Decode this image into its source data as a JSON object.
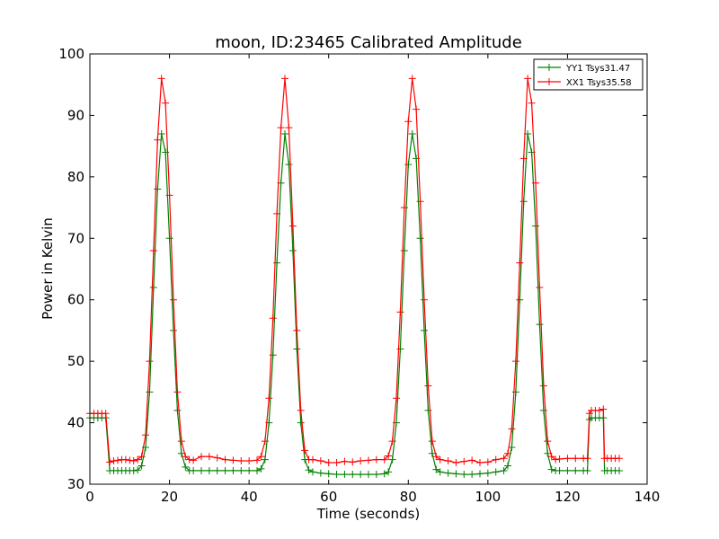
{
  "chart_data": {
    "type": "line",
    "title": "moon, ID:23465 Calibrated Amplitude",
    "xlabel": "Time (seconds)",
    "ylabel": "Power in Kelvin",
    "xlim": [
      0,
      140
    ],
    "ylim": [
      30,
      100
    ],
    "xticks": [
      "0",
      "20",
      "40",
      "60",
      "80",
      "100",
      "120",
      "140"
    ],
    "yticks": [
      "30",
      "40",
      "50",
      "60",
      "70",
      "80",
      "90",
      "100"
    ],
    "grid": false,
    "legend_position": "top-right",
    "marker": "plus",
    "series": [
      {
        "name": "YY1 Tsys31.47",
        "color": "#008000",
        "points": [
          [
            0,
            40.8
          ],
          [
            1,
            40.8
          ],
          [
            2,
            40.8
          ],
          [
            3,
            40.8
          ],
          [
            4,
            40.8
          ],
          [
            5,
            32.2
          ],
          [
            6,
            32.2
          ],
          [
            7,
            32.2
          ],
          [
            8,
            32.2
          ],
          [
            9,
            32.2
          ],
          [
            10,
            32.2
          ],
          [
            11,
            32.2
          ],
          [
            12,
            32.3
          ],
          [
            13,
            33.0
          ],
          [
            14,
            36.0
          ],
          [
            15,
            45.0
          ],
          [
            16,
            62.0
          ],
          [
            17,
            78.0
          ],
          [
            18,
            87.0
          ],
          [
            19,
            84.0
          ],
          [
            20,
            70.0
          ],
          [
            21,
            55.0
          ],
          [
            22,
            42.0
          ],
          [
            23,
            35.0
          ],
          [
            24,
            32.8
          ],
          [
            25,
            32.2
          ],
          [
            26,
            32.2
          ],
          [
            28,
            32.2
          ],
          [
            30,
            32.2
          ],
          [
            32,
            32.2
          ],
          [
            34,
            32.2
          ],
          [
            36,
            32.2
          ],
          [
            38,
            32.2
          ],
          [
            40,
            32.2
          ],
          [
            42,
            32.2
          ],
          [
            43,
            32.5
          ],
          [
            44,
            34.0
          ],
          [
            45,
            40.0
          ],
          [
            46,
            51.0
          ],
          [
            47,
            66.0
          ],
          [
            48,
            79.0
          ],
          [
            49,
            87.0
          ],
          [
            50,
            82.0
          ],
          [
            51,
            68.0
          ],
          [
            52,
            52.0
          ],
          [
            53,
            40.0
          ],
          [
            54,
            34.0
          ],
          [
            55,
            32.3
          ],
          [
            56,
            32.0
          ],
          [
            58,
            31.8
          ],
          [
            60,
            31.7
          ],
          [
            62,
            31.6
          ],
          [
            64,
            31.6
          ],
          [
            66,
            31.6
          ],
          [
            68,
            31.6
          ],
          [
            70,
            31.6
          ],
          [
            72,
            31.6
          ],
          [
            74,
            31.7
          ],
          [
            75,
            32.0
          ],
          [
            76,
            34.0
          ],
          [
            77,
            40.0
          ],
          [
            78,
            52.0
          ],
          [
            79,
            68.0
          ],
          [
            80,
            82.0
          ],
          [
            81,
            87.0
          ],
          [
            82,
            83.0
          ],
          [
            83,
            70.0
          ],
          [
            84,
            55.0
          ],
          [
            85,
            42.0
          ],
          [
            86,
            35.0
          ],
          [
            87,
            32.4
          ],
          [
            88,
            32.0
          ],
          [
            90,
            31.8
          ],
          [
            92,
            31.7
          ],
          [
            94,
            31.6
          ],
          [
            96,
            31.6
          ],
          [
            98,
            31.7
          ],
          [
            100,
            31.8
          ],
          [
            102,
            32.0
          ],
          [
            104,
            32.2
          ],
          [
            105,
            33.0
          ],
          [
            106,
            36.0
          ],
          [
            107,
            45.0
          ],
          [
            108,
            60.0
          ],
          [
            109,
            76.0
          ],
          [
            110,
            87.0
          ],
          [
            111,
            84.0
          ],
          [
            112,
            72.0
          ],
          [
            113,
            56.0
          ],
          [
            114,
            42.0
          ],
          [
            115,
            35.0
          ],
          [
            116,
            32.4
          ],
          [
            117,
            32.2
          ],
          [
            118,
            32.2
          ],
          [
            120,
            32.2
          ],
          [
            122,
            32.2
          ],
          [
            124,
            32.2
          ],
          [
            125,
            32.2
          ],
          [
            125.5,
            40.5
          ],
          [
            126,
            40.8
          ],
          [
            127,
            40.8
          ],
          [
            128,
            40.8
          ],
          [
            129,
            40.8
          ],
          [
            129.3,
            32.2
          ],
          [
            130,
            32.2
          ],
          [
            131,
            32.2
          ],
          [
            132,
            32.2
          ],
          [
            133,
            32.2
          ]
        ]
      },
      {
        "name": "XX1 Tsys35.58",
        "color": "#ff0000",
        "points": [
          [
            0,
            41.5
          ],
          [
            1,
            41.5
          ],
          [
            2,
            41.5
          ],
          [
            3,
            41.5
          ],
          [
            4,
            41.5
          ],
          [
            5,
            33.6
          ],
          [
            6,
            33.8
          ],
          [
            7,
            33.9
          ],
          [
            8,
            34.0
          ],
          [
            9,
            34.0
          ],
          [
            10,
            33.9
          ],
          [
            11,
            33.8
          ],
          [
            12,
            34.0
          ],
          [
            13,
            34.5
          ],
          [
            14,
            38.0
          ],
          [
            15,
            50.0
          ],
          [
            16,
            68.0
          ],
          [
            17,
            86.0
          ],
          [
            18,
            96.0
          ],
          [
            19,
            92.0
          ],
          [
            20,
            77.0
          ],
          [
            21,
            60.0
          ],
          [
            22,
            45.0
          ],
          [
            23,
            37.0
          ],
          [
            24,
            34.5
          ],
          [
            25,
            34.0
          ],
          [
            26,
            33.9
          ],
          [
            28,
            34.5
          ],
          [
            30,
            34.5
          ],
          [
            32,
            34.3
          ],
          [
            34,
            34.0
          ],
          [
            36,
            33.9
          ],
          [
            38,
            33.8
          ],
          [
            40,
            33.8
          ],
          [
            42,
            33.9
          ],
          [
            43,
            34.5
          ],
          [
            44,
            37.0
          ],
          [
            45,
            44.0
          ],
          [
            46,
            57.0
          ],
          [
            47,
            74.0
          ],
          [
            48,
            88.0
          ],
          [
            49,
            96.0
          ],
          [
            50,
            88.0
          ],
          [
            51,
            72.0
          ],
          [
            52,
            55.0
          ],
          [
            53,
            42.0
          ],
          [
            54,
            35.5
          ],
          [
            55,
            34.0
          ],
          [
            56,
            34.0
          ],
          [
            58,
            33.8
          ],
          [
            60,
            33.5
          ],
          [
            62,
            33.5
          ],
          [
            64,
            33.7
          ],
          [
            66,
            33.6
          ],
          [
            68,
            33.8
          ],
          [
            70,
            33.9
          ],
          [
            72,
            34.0
          ],
          [
            74,
            34.0
          ],
          [
            75,
            34.6
          ],
          [
            76,
            37.0
          ],
          [
            77,
            44.0
          ],
          [
            78,
            58.0
          ],
          [
            79,
            75.0
          ],
          [
            80,
            89.0
          ],
          [
            81,
            96.0
          ],
          [
            82,
            91.0
          ],
          [
            83,
            76.0
          ],
          [
            84,
            60.0
          ],
          [
            85,
            46.0
          ],
          [
            86,
            37.0
          ],
          [
            87,
            34.5
          ],
          [
            88,
            34.0
          ],
          [
            90,
            33.8
          ],
          [
            92,
            33.5
          ],
          [
            94,
            33.7
          ],
          [
            96,
            33.9
          ],
          [
            98,
            33.5
          ],
          [
            100,
            33.6
          ],
          [
            102,
            34.0
          ],
          [
            104,
            34.2
          ],
          [
            105,
            35.0
          ],
          [
            106,
            39.0
          ],
          [
            107,
            50.0
          ],
          [
            108,
            66.0
          ],
          [
            109,
            83.0
          ],
          [
            110,
            96.0
          ],
          [
            111,
            92.0
          ],
          [
            112,
            79.0
          ],
          [
            113,
            62.0
          ],
          [
            114,
            46.0
          ],
          [
            115,
            37.0
          ],
          [
            116,
            34.5
          ],
          [
            117,
            34.0
          ],
          [
            118,
            34.1
          ],
          [
            120,
            34.2
          ],
          [
            122,
            34.2
          ],
          [
            124,
            34.2
          ],
          [
            125,
            34.2
          ],
          [
            125.5,
            41.5
          ],
          [
            126,
            42.0
          ],
          [
            127,
            42.0
          ],
          [
            128,
            42.0
          ],
          [
            129,
            42.2
          ],
          [
            129.3,
            34.2
          ],
          [
            130,
            34.2
          ],
          [
            131,
            34.2
          ],
          [
            132,
            34.2
          ],
          [
            133,
            34.2
          ]
        ]
      }
    ]
  }
}
